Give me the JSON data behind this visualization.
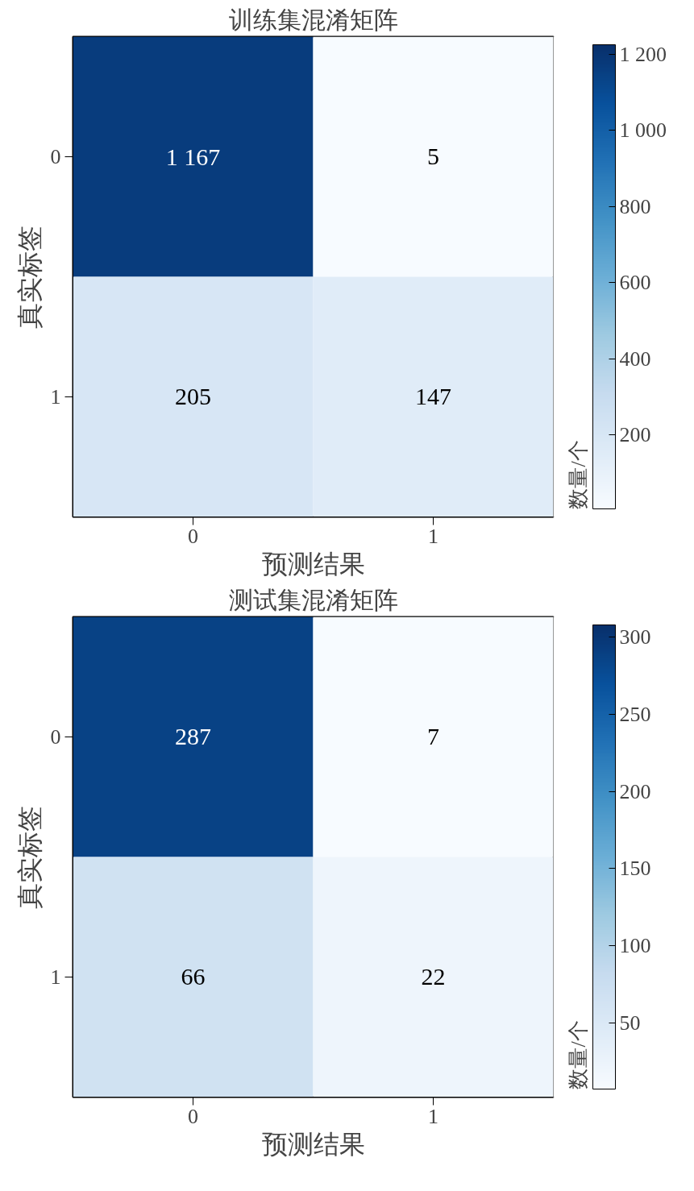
{
  "chart_data": [
    {
      "type": "heatmap",
      "title": "训练集混淆矩阵",
      "xlabel": "预测结果",
      "ylabel": "真实标签",
      "clabel": "数量/个",
      "categories": [
        "0",
        "1"
      ],
      "y_categories": [
        "0",
        "1"
      ],
      "cells": [
        [
          1167,
          5
        ],
        [
          205,
          147
        ]
      ],
      "cell_labels": [
        [
          "1 167",
          "5"
        ],
        [
          "205",
          "147"
        ]
      ],
      "clim": [
        5,
        1225
      ],
      "cticks": [
        200,
        400,
        600,
        800,
        {
          "value": 1000,
          "label": "1 000"
        },
        {
          "value": 1200,
          "label": "1 200"
        }
      ]
    },
    {
      "type": "heatmap",
      "title": "测试集混淆矩阵",
      "xlabel": "预测结果",
      "ylabel": "真实标签",
      "clabel": "数量/个",
      "categories": [
        "0",
        "1"
      ],
      "y_categories": [
        "0",
        "1"
      ],
      "cells": [
        [
          287,
          7
        ],
        [
          66,
          22
        ]
      ],
      "cell_labels": [
        [
          "287",
          "7"
        ],
        [
          "66",
          "22"
        ]
      ],
      "clim": [
        7,
        308
      ],
      "cticks": [
        50,
        100,
        150,
        200,
        250,
        300
      ]
    }
  ]
}
